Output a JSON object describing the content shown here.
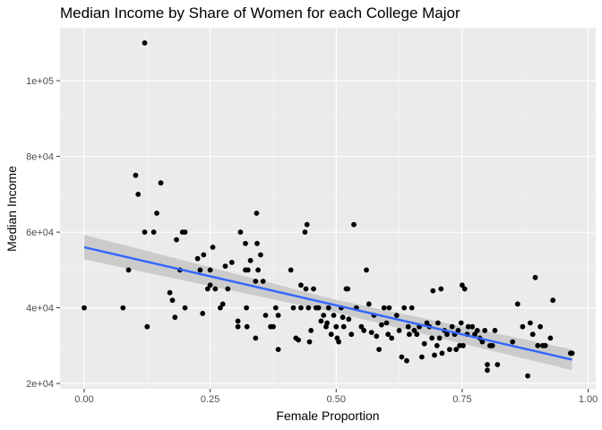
{
  "chart_data": {
    "type": "scatter",
    "title": "Median Income by Share of Women for each College Major",
    "xlabel": "Female Proportion",
    "ylabel": "Median Income",
    "xlim": [
      -0.048,
      1.015
    ],
    "ylim": [
      18600,
      114000
    ],
    "x_ticks": [
      {
        "value": 0,
        "label": "0.00"
      },
      {
        "value": 0.25,
        "label": "0.25"
      },
      {
        "value": 0.5,
        "label": "0.50"
      },
      {
        "value": 0.75,
        "label": "0.75"
      },
      {
        "value": 1.0,
        "label": "1.00"
      }
    ],
    "y_ticks": [
      {
        "value": 20000,
        "label": "2e+04"
      },
      {
        "value": 40000,
        "label": "4e+04"
      },
      {
        "value": 60000,
        "label": "6e+04"
      },
      {
        "value": 80000,
        "label": "8e+04"
      },
      {
        "value": 100000,
        "label": "1e+05"
      }
    ],
    "grid": true,
    "background": "#ebebeb",
    "point_color": "#000000",
    "trend_color": "#3366ff",
    "band_color": "#bebebe",
    "trend": {
      "method": "linear",
      "x": [
        0,
        0.968
      ],
      "y": [
        56000,
        26300
      ]
    },
    "band": {
      "x": [
        0,
        0.5,
        0.968
      ],
      "lower": [
        52800,
        38700,
        23500
      ],
      "upper": [
        59300,
        42100,
        29000
      ]
    },
    "points": [
      [
        0.0,
        40000
      ],
      [
        0.077,
        40000
      ],
      [
        0.088,
        50000
      ],
      [
        0.102,
        75000
      ],
      [
        0.107,
        70000
      ],
      [
        0.12,
        110000
      ],
      [
        0.12,
        60000
      ],
      [
        0.125,
        35000
      ],
      [
        0.138,
        60000
      ],
      [
        0.144,
        65000
      ],
      [
        0.152,
        73000
      ],
      [
        0.17,
        44000
      ],
      [
        0.175,
        42000
      ],
      [
        0.18,
        37500
      ],
      [
        0.183,
        58000
      ],
      [
        0.19,
        50000
      ],
      [
        0.195,
        60000
      ],
      [
        0.2,
        60000
      ],
      [
        0.2,
        40000
      ],
      [
        0.225,
        53000
      ],
      [
        0.23,
        50000
      ],
      [
        0.235,
        38500
      ],
      [
        0.237,
        54000
      ],
      [
        0.245,
        45000
      ],
      [
        0.25,
        46000
      ],
      [
        0.25,
        50000
      ],
      [
        0.255,
        56000
      ],
      [
        0.26,
        45000
      ],
      [
        0.27,
        40000
      ],
      [
        0.275,
        41000
      ],
      [
        0.28,
        51000
      ],
      [
        0.285,
        45000
      ],
      [
        0.293,
        52000
      ],
      [
        0.305,
        36500
      ],
      [
        0.305,
        35000
      ],
      [
        0.31,
        60000
      ],
      [
        0.32,
        57000
      ],
      [
        0.32,
        50000
      ],
      [
        0.322,
        40000
      ],
      [
        0.323,
        35000
      ],
      [
        0.325,
        50000
      ],
      [
        0.33,
        52500
      ],
      [
        0.34,
        47000
      ],
      [
        0.34,
        32000
      ],
      [
        0.342,
        65000
      ],
      [
        0.343,
        57000
      ],
      [
        0.345,
        50000
      ],
      [
        0.35,
        54000
      ],
      [
        0.355,
        47000
      ],
      [
        0.36,
        38000
      ],
      [
        0.37,
        35000
      ],
      [
        0.375,
        35000
      ],
      [
        0.38,
        40000
      ],
      [
        0.385,
        38000
      ],
      [
        0.385,
        29000
      ],
      [
        0.41,
        50000
      ],
      [
        0.415,
        40000
      ],
      [
        0.42,
        32000
      ],
      [
        0.425,
        31500
      ],
      [
        0.43,
        46000
      ],
      [
        0.43,
        40000
      ],
      [
        0.438,
        60000
      ],
      [
        0.44,
        45000
      ],
      [
        0.442,
        62000
      ],
      [
        0.445,
        40000
      ],
      [
        0.447,
        31000
      ],
      [
        0.45,
        34000
      ],
      [
        0.455,
        45000
      ],
      [
        0.46,
        40000
      ],
      [
        0.465,
        40000
      ],
      [
        0.47,
        36500
      ],
      [
        0.475,
        38000
      ],
      [
        0.48,
        35000
      ],
      [
        0.482,
        36000
      ],
      [
        0.485,
        40000
      ],
      [
        0.49,
        33000
      ],
      [
        0.495,
        38000
      ],
      [
        0.5,
        35000
      ],
      [
        0.502,
        32000
      ],
      [
        0.505,
        31000
      ],
      [
        0.51,
        40000
      ],
      [
        0.513,
        37500
      ],
      [
        0.515,
        35000
      ],
      [
        0.52,
        45000
      ],
      [
        0.523,
        45000
      ],
      [
        0.525,
        37000
      ],
      [
        0.53,
        33000
      ],
      [
        0.535,
        62000
      ],
      [
        0.54,
        40000
      ],
      [
        0.55,
        35000
      ],
      [
        0.555,
        34000
      ],
      [
        0.56,
        50000
      ],
      [
        0.565,
        41000
      ],
      [
        0.57,
        33500
      ],
      [
        0.575,
        38000
      ],
      [
        0.58,
        32500
      ],
      [
        0.585,
        29000
      ],
      [
        0.59,
        35500
      ],
      [
        0.595,
        40000
      ],
      [
        0.6,
        36000
      ],
      [
        0.603,
        33000
      ],
      [
        0.605,
        40000
      ],
      [
        0.61,
        32000
      ],
      [
        0.62,
        38000
      ],
      [
        0.625,
        34000
      ],
      [
        0.63,
        27000
      ],
      [
        0.635,
        40000
      ],
      [
        0.64,
        26000
      ],
      [
        0.643,
        35000
      ],
      [
        0.645,
        33000
      ],
      [
        0.65,
        40000
      ],
      [
        0.655,
        34000
      ],
      [
        0.66,
        33000
      ],
      [
        0.665,
        35000
      ],
      [
        0.67,
        27000
      ],
      [
        0.675,
        30500
      ],
      [
        0.68,
        36000
      ],
      [
        0.685,
        35000
      ],
      [
        0.69,
        32000
      ],
      [
        0.692,
        44500
      ],
      [
        0.695,
        27500
      ],
      [
        0.7,
        30000
      ],
      [
        0.702,
        36000
      ],
      [
        0.705,
        32000
      ],
      [
        0.708,
        45000
      ],
      [
        0.71,
        28000
      ],
      [
        0.715,
        34000
      ],
      [
        0.72,
        33000
      ],
      [
        0.725,
        29000
      ],
      [
        0.73,
        35000
      ],
      [
        0.735,
        33000
      ],
      [
        0.738,
        29000
      ],
      [
        0.742,
        34000
      ],
      [
        0.745,
        30000
      ],
      [
        0.748,
        36000
      ],
      [
        0.75,
        46000
      ],
      [
        0.752,
        30000
      ],
      [
        0.755,
        45000
      ],
      [
        0.76,
        33000
      ],
      [
        0.762,
        35000
      ],
      [
        0.77,
        35000
      ],
      [
        0.775,
        33000
      ],
      [
        0.78,
        34000
      ],
      [
        0.785,
        32000
      ],
      [
        0.79,
        31000
      ],
      [
        0.795,
        34000
      ],
      [
        0.8,
        23500
      ],
      [
        0.8,
        25000
      ],
      [
        0.805,
        30000
      ],
      [
        0.81,
        30000
      ],
      [
        0.815,
        34000
      ],
      [
        0.82,
        25000
      ],
      [
        0.85,
        31000
      ],
      [
        0.86,
        41000
      ],
      [
        0.87,
        35000
      ],
      [
        0.88,
        22000
      ],
      [
        0.885,
        36000
      ],
      [
        0.89,
        33000
      ],
      [
        0.895,
        48000
      ],
      [
        0.9,
        30000
      ],
      [
        0.905,
        35000
      ],
      [
        0.91,
        30000
      ],
      [
        0.915,
        30000
      ],
      [
        0.925,
        32000
      ],
      [
        0.93,
        42000
      ],
      [
        0.965,
        28000
      ],
      [
        0.968,
        28000
      ]
    ]
  }
}
